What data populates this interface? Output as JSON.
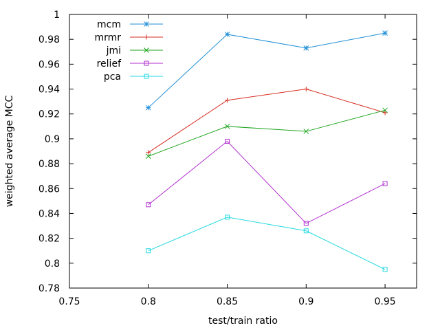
{
  "chart_data": {
    "type": "line",
    "title": "",
    "xlabel": "test/train ratio",
    "ylabel": "weighted average MCC",
    "xlim": [
      0.75,
      0.97
    ],
    "ylim": [
      0.78,
      1.0
    ],
    "xticks": [
      0.75,
      0.8,
      0.85,
      0.9,
      0.95
    ],
    "xtick_labels": [
      "0.75",
      "0.8",
      "0.85",
      "0.9",
      "0.95"
    ],
    "yticks": [
      0.78,
      0.8,
      0.82,
      0.84,
      0.86,
      0.88,
      0.9,
      0.92,
      0.94,
      0.96,
      0.98,
      1.0
    ],
    "ytick_labels": [
      "0.78",
      "0.8",
      "0.82",
      "0.84",
      "0.86",
      "0.88",
      "0.9",
      "0.92",
      "0.94",
      "0.96",
      "0.98",
      "1"
    ],
    "grid": false,
    "legend_position": "top-left",
    "x": [
      0.8,
      0.85,
      0.9,
      0.95
    ],
    "series": [
      {
        "name": "mcm",
        "color": "#1f8ed4",
        "marker": "asterisk",
        "values": [
          0.925,
          0.984,
          0.973,
          0.985
        ]
      },
      {
        "name": "mrmr",
        "color": "#d62d20",
        "marker": "plus",
        "values": [
          0.889,
          0.931,
          0.94,
          0.921
        ]
      },
      {
        "name": "jmi",
        "color": "#1ea51e",
        "marker": "x",
        "values": [
          0.886,
          0.91,
          0.906,
          0.923
        ]
      },
      {
        "name": "relief",
        "color": "#b12fcf",
        "marker": "square",
        "values": [
          0.847,
          0.898,
          0.832,
          0.864
        ]
      },
      {
        "name": "pca",
        "color": "#22d8e0",
        "marker": "square",
        "values": [
          0.81,
          0.837,
          0.826,
          0.795
        ]
      }
    ]
  }
}
